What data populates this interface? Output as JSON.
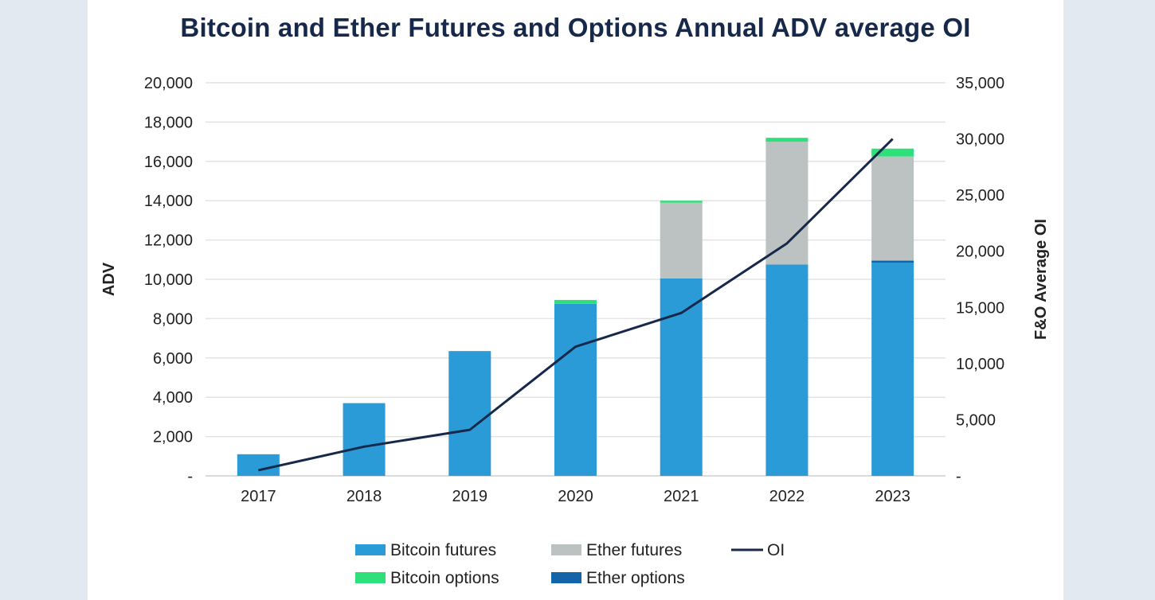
{
  "chart_data": {
    "type": "bar",
    "stacked": true,
    "title": "Bitcoin and Ether Futures and Options Annual ADV average OI",
    "xlabel": "",
    "ylabel": "ADV",
    "y2label": "F&O Average OI",
    "categories": [
      "2017",
      "2018",
      "2019",
      "2020",
      "2021",
      "2022",
      "2023"
    ],
    "ylim": [
      0,
      20000
    ],
    "y2lim": [
      0,
      35000
    ],
    "yticks": [
      "-",
      "2,000",
      "4,000",
      "6,000",
      "8,000",
      "10,000",
      "12,000",
      "14,000",
      "16,000",
      "18,000",
      "20,000"
    ],
    "y2ticks": [
      "-",
      "5,000",
      "10,000",
      "15,000",
      "20,000",
      "25,000",
      "30,000",
      "35,000"
    ],
    "grid": true,
    "legend_position": "bottom",
    "series": [
      {
        "name": "Bitcoin futures",
        "type": "bar",
        "color": "#2b9bd8",
        "values": [
          1100,
          3700,
          6350,
          8750,
          10050,
          10750,
          10850
        ]
      },
      {
        "name": "Ether options",
        "type": "bar",
        "color": "#1364a8",
        "values": [
          0,
          0,
          0,
          0,
          0,
          0,
          100
        ]
      },
      {
        "name": "Ether futures",
        "type": "bar",
        "color": "#bcc2c2",
        "values": [
          0,
          0,
          0,
          0,
          3850,
          6250,
          5300
        ]
      },
      {
        "name": "Bitcoin options",
        "type": "bar",
        "color": "#2ee079",
        "values": [
          0,
          0,
          0,
          200,
          100,
          200,
          400
        ]
      },
      {
        "name": "OI",
        "type": "line",
        "axis": "right",
        "color": "#16294a",
        "values": [
          500,
          2600,
          4100,
          11500,
          14500,
          20700,
          30000
        ]
      }
    ]
  },
  "legend": {
    "bitcoin_futures": "Bitcoin futures",
    "ether_futures": "Ether futures",
    "oi": "OI",
    "bitcoin_options": "Bitcoin options",
    "ether_options": "Ether options"
  }
}
